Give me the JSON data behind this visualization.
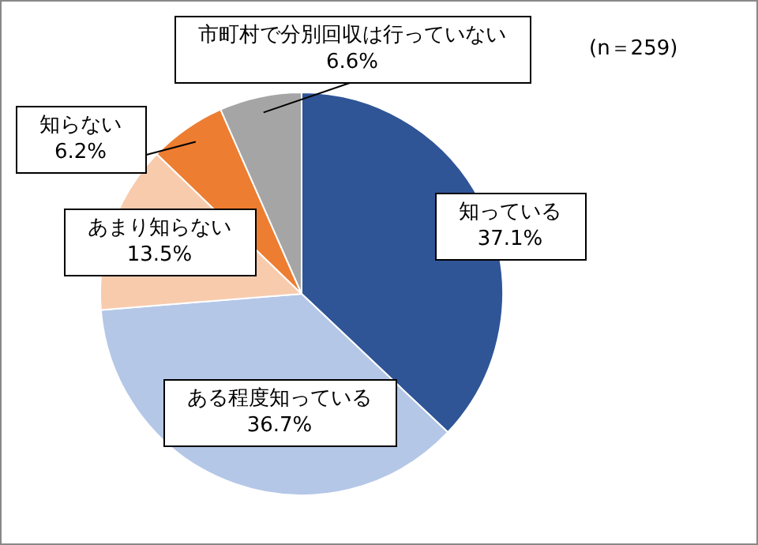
{
  "chart_data": {
    "type": "pie",
    "categories": [
      "知っている",
      "ある程度知っている",
      "あまり知らない",
      "知らない",
      "市町村で分別回収は行っていない"
    ],
    "values": [
      37.1,
      36.7,
      13.5,
      6.2,
      6.6
    ],
    "colors": [
      "#2f5597",
      "#b4c7e7",
      "#f8cbad",
      "#ed7d31",
      "#a5a5a5"
    ],
    "value_labels": [
      "37.1%",
      "36.7%",
      "13.5%",
      "6.2%",
      "6.6%"
    ],
    "annotations": [
      "(n＝259)"
    ],
    "legend": false
  }
}
